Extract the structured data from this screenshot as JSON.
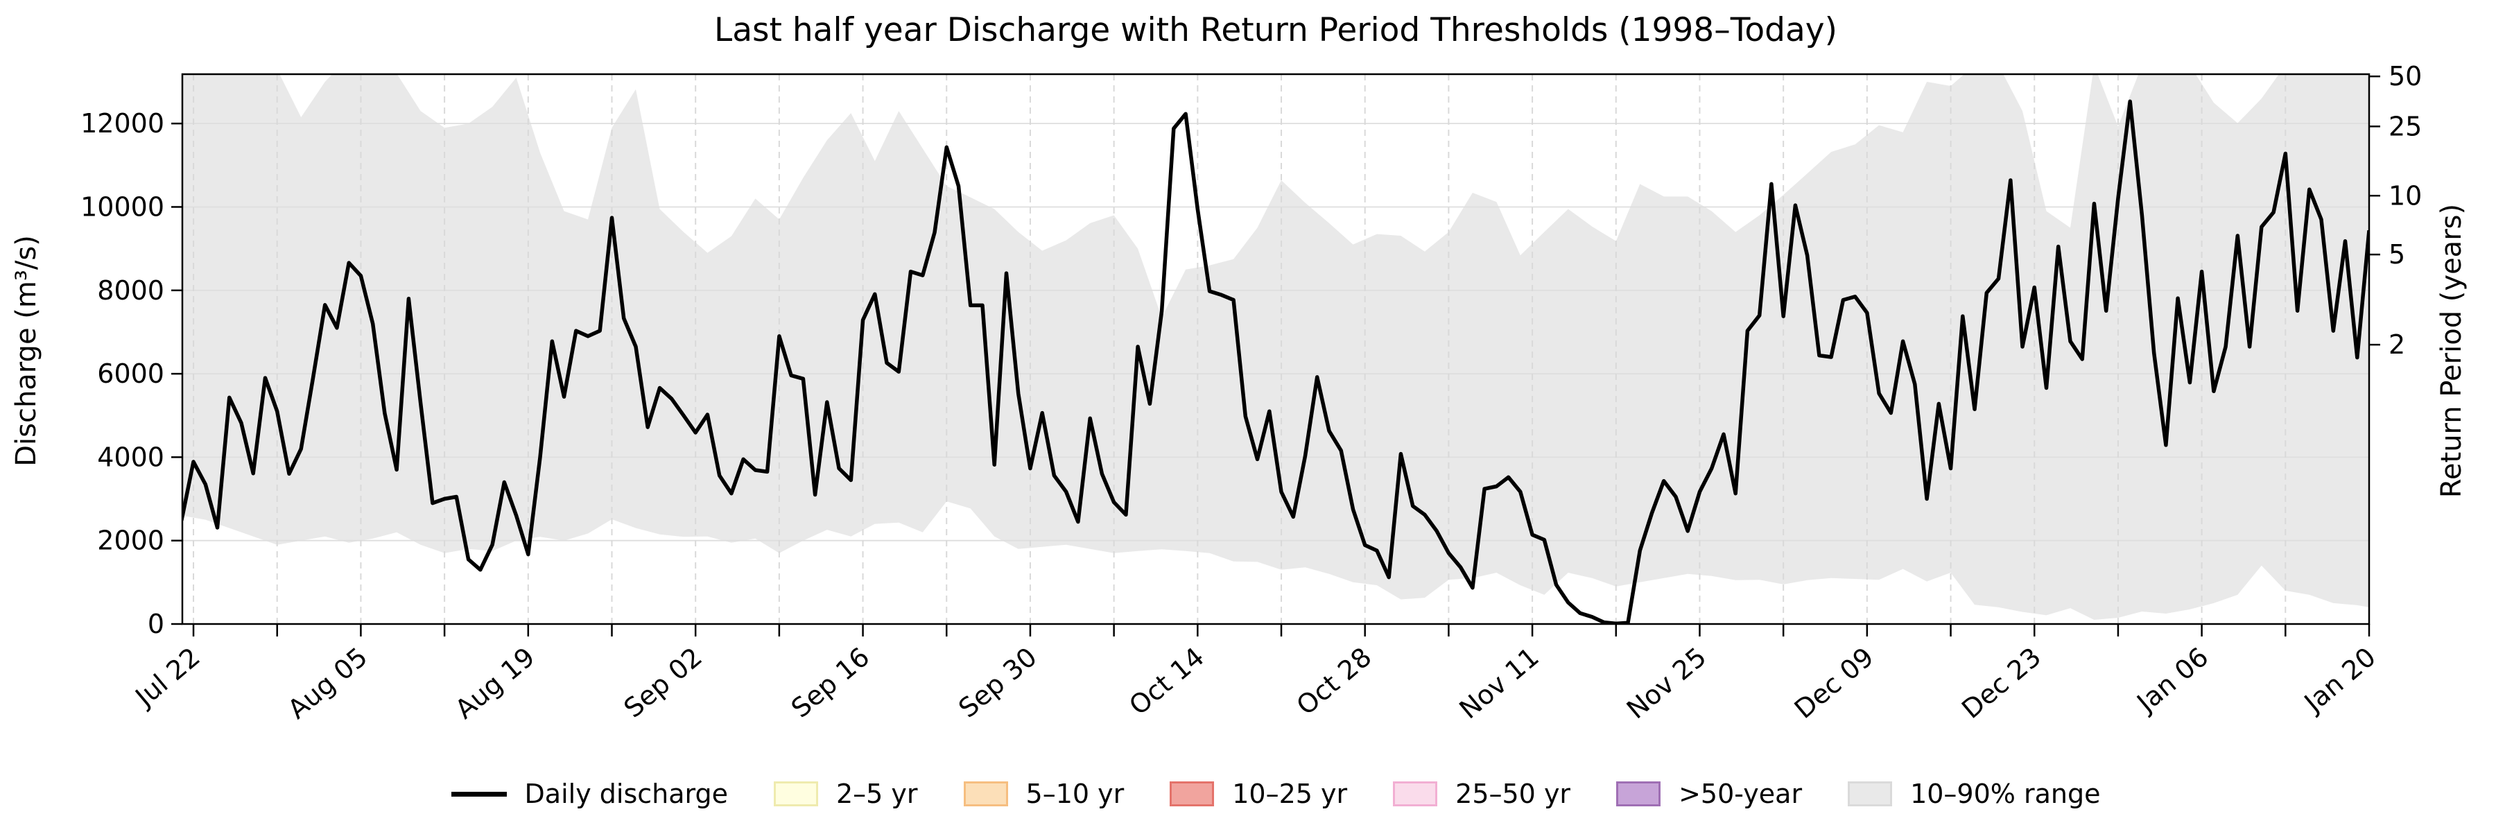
{
  "title": "Last half year Discharge with Return Period Thresholds (1998–Today)",
  "axes": {
    "y_left": {
      "label": "Discharge (m³/s)",
      "tick_values": [
        0,
        2000,
        4000,
        6000,
        8000,
        10000,
        12000
      ]
    },
    "y_right": {
      "label": "Return Period (years)",
      "ticks": [
        {
          "label": "50",
          "frac_from_top": 0.004
        },
        {
          "label": "25",
          "frac_from_top": 0.095
        },
        {
          "label": "10",
          "frac_from_top": 0.221
        },
        {
          "label": "5",
          "frac_from_top": 0.328
        },
        {
          "label": "2",
          "frac_from_top": 0.492
        }
      ]
    },
    "x": {
      "tick_labels": [
        "Jul 22",
        "Aug 05",
        "Aug 19",
        "Sep 02",
        "Sep 16",
        "Sep 30",
        "Oct 14",
        "Oct 28",
        "Nov 11",
        "Nov 25",
        "Dec 09",
        "Dec 23",
        "Jan 06",
        "Jan 20"
      ],
      "minor_tick_every_days": 7,
      "label_every_days": 14
    }
  },
  "legend": {
    "items": [
      {
        "label": "Daily discharge",
        "type": "line",
        "color": "#000000"
      },
      {
        "label": "2–5 yr",
        "type": "patch",
        "fill": "#FFFEE0",
        "edge": "#EFEBAE"
      },
      {
        "label": "5–10 yr",
        "type": "patch",
        "fill": "#FCDFB8",
        "edge": "#F6BE80"
      },
      {
        "label": "10–25 yr",
        "type": "patch",
        "fill": "#F1A49E",
        "edge": "#E4736B"
      },
      {
        "label": "25–50 yr",
        "type": "patch",
        "fill": "#FADCEB",
        "edge": "#F2AFD3"
      },
      {
        "label": ">50-year",
        "type": "patch",
        "fill": "#C7A4D8",
        "edge": "#9F6FB4"
      },
      {
        "label": "10–90% range",
        "type": "patch",
        "fill": "#E9E9E9",
        "edge": "#DADADA"
      }
    ]
  },
  "colors": {
    "line": "#000000",
    "band": "#E9E9E9",
    "grid_h": "#DEDEDE",
    "grid_v": "#D9D9D9",
    "spine": "#000000",
    "background": "#FFFFFF"
  },
  "chart_data": {
    "type": "line",
    "title": "Last half year Discharge with Return Period Thresholds (1998–Today)",
    "xlabel": "",
    "ylabel": "Discharge (m³/s)",
    "y2label": "Return Period (years)",
    "ylim": [
      0,
      13183
    ],
    "x_axis": {
      "unit": "date",
      "start": "Jul 22",
      "end": "Jan 20",
      "span_days": 182,
      "tick_labels": [
        "Jul 22",
        "Aug 05",
        "Aug 19",
        "Sep 02",
        "Sep 16",
        "Sep 30",
        "Oct 14",
        "Oct 28",
        "Nov 11",
        "Nov 25",
        "Dec 09",
        "Dec 23",
        "Jan 06",
        "Jan 20"
      ]
    },
    "y2_ticks": [
      {
        "label": "50",
        "frac_from_top": 0.004
      },
      {
        "label": "25",
        "frac_from_top": 0.095
      },
      {
        "label": "10",
        "frac_from_top": 0.221
      },
      {
        "label": "5",
        "frac_from_top": 0.328
      },
      {
        "label": "2",
        "frac_from_top": 0.492
      }
    ],
    "grid": true,
    "legend_position": "bottom-center",
    "series": [
      {
        "name": "Daily discharge",
        "start_day": -1,
        "step_days": 1,
        "values": [
          2480,
          3890,
          3350,
          2310,
          5430,
          4820,
          3610,
          5900,
          5100,
          3600,
          4200,
          5900,
          7650,
          7100,
          8660,
          8350,
          7200,
          5050,
          3700,
          7800,
          5300,
          2900,
          3000,
          3050,
          1550,
          1300,
          1900,
          3400,
          2600,
          1670,
          4000,
          6780,
          5450,
          7030,
          6900,
          7030,
          9740,
          7330,
          6650,
          4720,
          5660,
          5400,
          5000,
          4590,
          5020,
          3560,
          3130,
          3950,
          3690,
          3650,
          6900,
          5960,
          5880,
          3100,
          5320,
          3730,
          3450,
          7290,
          7910,
          6260,
          6050,
          8450,
          8360,
          9390,
          11430,
          10500,
          7640,
          7640,
          3820,
          8410,
          5530,
          3730,
          5060,
          3560,
          3170,
          2450,
          4930,
          3600,
          2920,
          2620,
          6650,
          5280,
          7500,
          11880,
          12230,
          9950,
          7980,
          7890,
          7770,
          4980,
          3950,
          5100,
          3170,
          2570,
          4030,
          5920,
          4630,
          4160,
          2750,
          1890,
          1760,
          1120,
          4080,
          2830,
          2620,
          2230,
          1700,
          1360,
          870,
          3240,
          3300,
          3520,
          3170,
          2140,
          2020,
          940,
          515,
          260,
          170,
          40,
          10,
          30,
          1760,
          2660,
          3430,
          3050,
          2230,
          3170,
          3730,
          4550,
          3130,
          7030,
          7400,
          10550,
          7380,
          10040,
          8840,
          6440,
          6400,
          7770,
          7850,
          7460,
          5530,
          5060,
          6780,
          5750,
          3000,
          5280,
          3730,
          7380,
          5150,
          7940,
          8280,
          10640,
          6650,
          8070,
          5660,
          9050,
          6780,
          6350,
          10080,
          7510,
          10200,
          12530,
          9800,
          6500,
          4290,
          7810,
          5790,
          8450,
          5580,
          6650,
          9310,
          6650,
          9520,
          9870,
          11280,
          7510,
          10420,
          9700,
          7030,
          9180,
          6390,
          9440
        ]
      },
      {
        "name": "10–90% range (upper, 90th percentile)",
        "start_day": -1,
        "step_days": 2,
        "values": [
          13600,
          13600,
          13600,
          13600,
          13300,
          12150,
          13000,
          13600,
          13600,
          13200,
          12300,
          11900,
          12000,
          12400,
          13100,
          11300,
          9900,
          9700,
          11900,
          12820,
          9950,
          9400,
          8900,
          9300,
          10200,
          9700,
          10700,
          11600,
          12250,
          11100,
          12300,
          11400,
          10500,
          10230,
          9950,
          9400,
          8950,
          9200,
          9610,
          9800,
          9000,
          7350,
          8500,
          8600,
          8750,
          9500,
          10640,
          10100,
          9610,
          9100,
          9350,
          9310,
          8930,
          9400,
          10340,
          10120,
          8840,
          9400,
          9950,
          9530,
          9180,
          10550,
          10250,
          10250,
          9900,
          9400,
          9800,
          10290,
          10800,
          11320,
          11500,
          11960,
          11790,
          13000,
          12900,
          13400,
          13400,
          12300,
          9900,
          9500,
          13400,
          11930,
          13400,
          13400,
          13400,
          12500,
          12010,
          12600,
          13400,
          13400,
          13400,
          13400,
          13400
        ]
      },
      {
        "name": "10–90% range (lower, 10th percentile)",
        "start_day": -1,
        "step_days": 2,
        "values": [
          2600,
          2500,
          2300,
          2100,
          1900,
          2000,
          2100,
          1950,
          2050,
          2200,
          1900,
          1700,
          1800,
          1750,
          2000,
          2090,
          2000,
          2170,
          2510,
          2300,
          2150,
          2090,
          2100,
          1950,
          2050,
          1700,
          2000,
          2260,
          2100,
          2400,
          2430,
          2200,
          2940,
          2770,
          2100,
          1800,
          1850,
          1900,
          1800,
          1700,
          1750,
          1790,
          1750,
          1700,
          1500,
          1490,
          1300,
          1360,
          1200,
          1000,
          930,
          590,
          630,
          1060,
          1100,
          1230,
          930,
          700,
          1230,
          1100,
          900,
          1000,
          1100,
          1200,
          1150,
          1050,
          1060,
          950,
          1050,
          1100,
          1080,
          1060,
          1320,
          1020,
          1230,
          460,
          400,
          290,
          210,
          380,
          100,
          150,
          300,
          250,
          350,
          500,
          700,
          1400,
          800,
          700,
          500,
          450,
          400
        ]
      }
    ],
    "threshold_legend_only": [
      "2–5 yr",
      "5–10 yr",
      "10–25 yr",
      "25–50 yr",
      ">50-year"
    ]
  }
}
